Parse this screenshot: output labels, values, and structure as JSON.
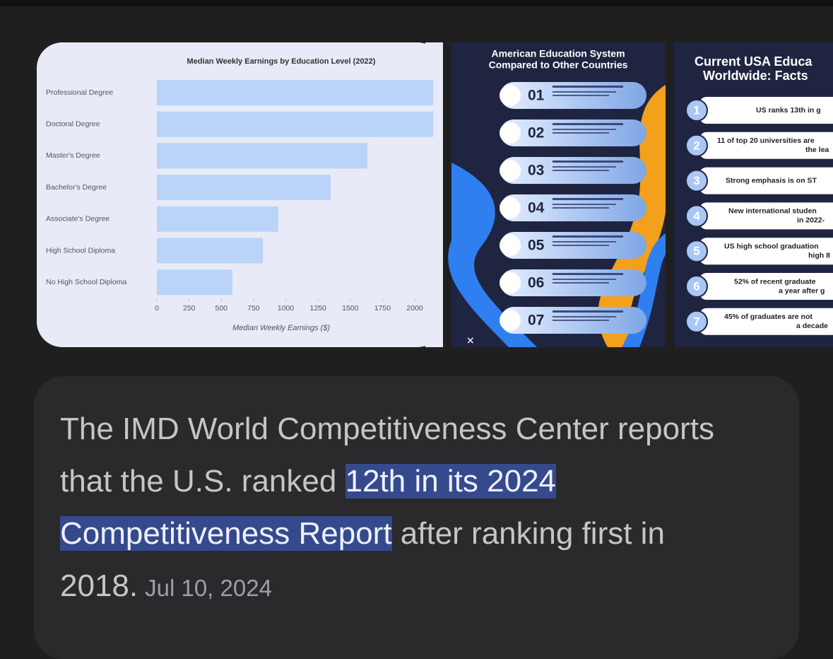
{
  "images": [
    {
      "type": "bar",
      "title": "Median Weekly Earnings by Education Level (2022)",
      "categories": [
        "Professional Degree",
        "Doctoral Degree",
        "Master's Degree",
        "Bachelor's Degree",
        "Associate's Degree",
        "High School Diploma",
        "No High School Diploma"
      ],
      "values": [
        2142,
        2142,
        1633,
        1348,
        942,
        822,
        586
      ],
      "color": "#b9d4f8",
      "xlim": [
        0,
        2142
      ],
      "xticks": [
        0,
        250,
        500,
        750,
        1000,
        1250,
        1500,
        1750,
        2000
      ],
      "x_label": "Median Weekly Earnings ($)"
    },
    {
      "title_lines": [
        "American Education System",
        "Compared to Other Countries"
      ],
      "items": [
        "01",
        "02",
        "03",
        "04",
        "05",
        "06",
        "07"
      ]
    },
    {
      "title_lines": [
        "Current USA Educa",
        "Worldwide: Facts"
      ],
      "items": [
        {
          "number": 1,
          "lines": [
            "US ranks 13th in g"
          ]
        },
        {
          "number": 2,
          "lines": [
            "11 of top 20 universities are",
            "the lea"
          ]
        },
        {
          "number": 3,
          "lines": [
            "Strong emphasis is on ST"
          ]
        },
        {
          "number": 4,
          "lines": [
            "New international studen",
            "in 2022-"
          ]
        },
        {
          "number": 5,
          "lines": [
            "US high school graduation",
            "high 8"
          ]
        },
        {
          "number": 6,
          "lines": [
            "52% of recent graduate",
            "a year after g"
          ]
        },
        {
          "number": 7,
          "lines": [
            "45% of graduates are not",
            "a decade"
          ]
        }
      ]
    }
  ],
  "snippet": {
    "text_before": "The IMD World Competitiveness Center reports that the U.S. ranked",
    "highlight": "12th in its 2024 Competitiveness Report",
    "text_after": "after ranking first in 2018.",
    "date": "Jul 10, 2024"
  }
}
